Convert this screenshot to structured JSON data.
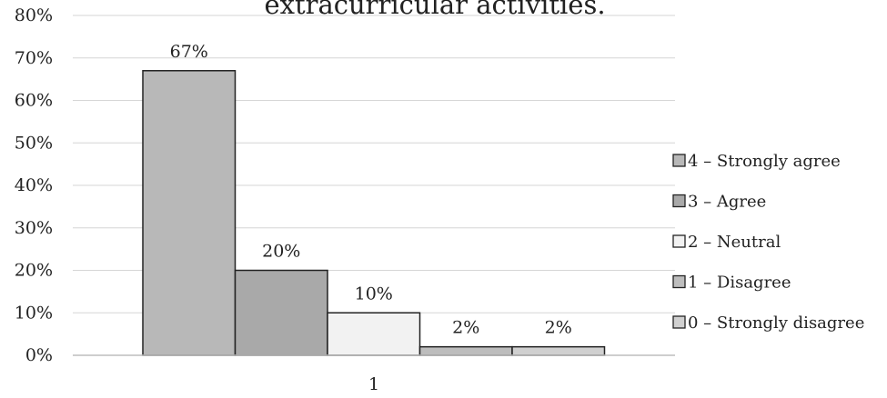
{
  "chart_data": {
    "type": "bar",
    "title": "extracurricular activities.",
    "categories": [
      "1"
    ],
    "ylim": [
      0,
      80
    ],
    "yticks": [
      "0%",
      "10%",
      "20%",
      "30%",
      "40%",
      "50%",
      "60%",
      "70%",
      "80%"
    ],
    "grid": true,
    "legend_position": "right",
    "series": [
      {
        "name": "4 – Strongly agree",
        "values": [
          67
        ],
        "label": "67%",
        "color": "#b8b8b8"
      },
      {
        "name": "3 – Agree",
        "values": [
          20
        ],
        "label": "20%",
        "color": "#a9a9a9"
      },
      {
        "name": "2 – Neutral",
        "values": [
          10
        ],
        "label": "10%",
        "color": "#f2f2f2"
      },
      {
        "name": "1 – Disagree",
        "values": [
          2
        ],
        "label": "2%",
        "color": "#bdbdbd"
      },
      {
        "name": "0 – Strongly disagree",
        "values": [
          2
        ],
        "label": "2%",
        "color": "#d0d0d0"
      }
    ]
  }
}
